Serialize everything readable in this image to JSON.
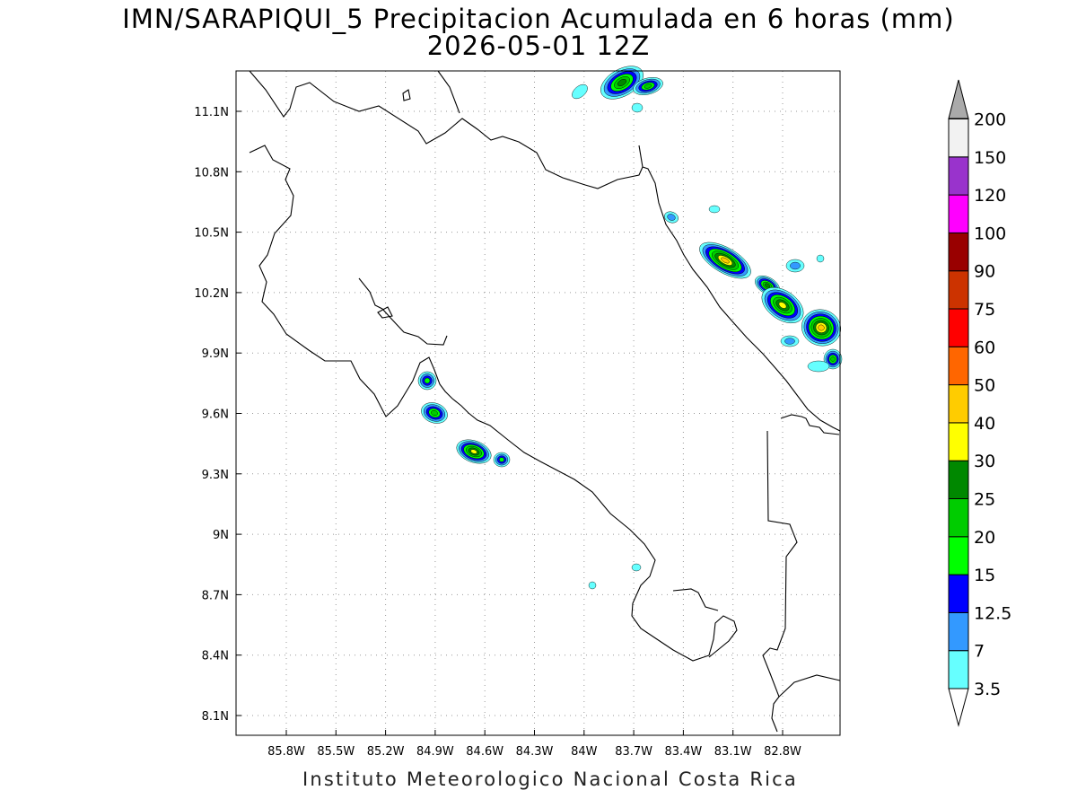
{
  "title": {
    "line1": "IMN/SARAPIQUI_5 Precipitacion Acumulada en 6 horas (mm)",
    "line2": "2026-05-01 12Z"
  },
  "map": {
    "lon_range": [
      -86.0,
      -83.0
    ],
    "lat_range": [
      8.0,
      11.3
    ],
    "lon_ticks": [
      {
        "value": -85.8,
        "label": "85.8W"
      },
      {
        "value": -85.5,
        "label": "85.5W"
      },
      {
        "value": -85.2,
        "label": "85.2W"
      },
      {
        "value": -84.9,
        "label": "84.9W"
      },
      {
        "value": -84.6,
        "label": "84.6W"
      },
      {
        "value": -84.3,
        "label": "84.3W"
      },
      {
        "value": -84.0,
        "label": "84W"
      },
      {
        "value": -83.7,
        "label": "83.7W"
      },
      {
        "value": -83.4,
        "label": "83.4W"
      },
      {
        "value": -83.1,
        "label": "83.1W"
      },
      {
        "value": -82.8,
        "label": "82.8W"
      }
    ],
    "lat_ticks": [
      {
        "value": 11.1,
        "label": "11.1N"
      },
      {
        "value": 10.8,
        "label": "10.8N"
      },
      {
        "value": 10.5,
        "label": "10.5N"
      },
      {
        "value": 10.2,
        "label": "10.2N"
      },
      {
        "value": 9.9,
        "label": "9.9N"
      },
      {
        "value": 9.6,
        "label": "9.6N"
      },
      {
        "value": 9.3,
        "label": "9.3N"
      },
      {
        "value": 9.0,
        "label": "9N"
      },
      {
        "value": 8.7,
        "label": "8.7N"
      },
      {
        "value": 8.4,
        "label": "8.4N"
      },
      {
        "value": 8.1,
        "label": "8.1N"
      }
    ],
    "grid": true
  },
  "colorbar": {
    "levels": [
      {
        "label": "3.5",
        "color": "#66ffff"
      },
      {
        "label": "7",
        "color": "#3399ff"
      },
      {
        "label": "12.5",
        "color": "#0000ff"
      },
      {
        "label": "15",
        "color": "#00ff00"
      },
      {
        "label": "20",
        "color": "#00cc00"
      },
      {
        "label": "25",
        "color": "#008800"
      },
      {
        "label": "30",
        "color": "#ffff00"
      },
      {
        "label": "40",
        "color": "#ffcc00"
      },
      {
        "label": "50",
        "color": "#ff6600"
      },
      {
        "label": "60",
        "color": "#ff0000"
      },
      {
        "label": "75",
        "color": "#cc3300"
      },
      {
        "label": "90",
        "color": "#990000"
      },
      {
        "label": "100",
        "color": "#ff00ff"
      },
      {
        "label": "120",
        "color": "#9933cc"
      },
      {
        "label": "150",
        "color": "#f2f2f2"
      },
      {
        "label": "200",
        "color": "#aaaaaa"
      }
    ]
  },
  "footer": "Instituto Meteorologico Nacional Costa Rica"
}
